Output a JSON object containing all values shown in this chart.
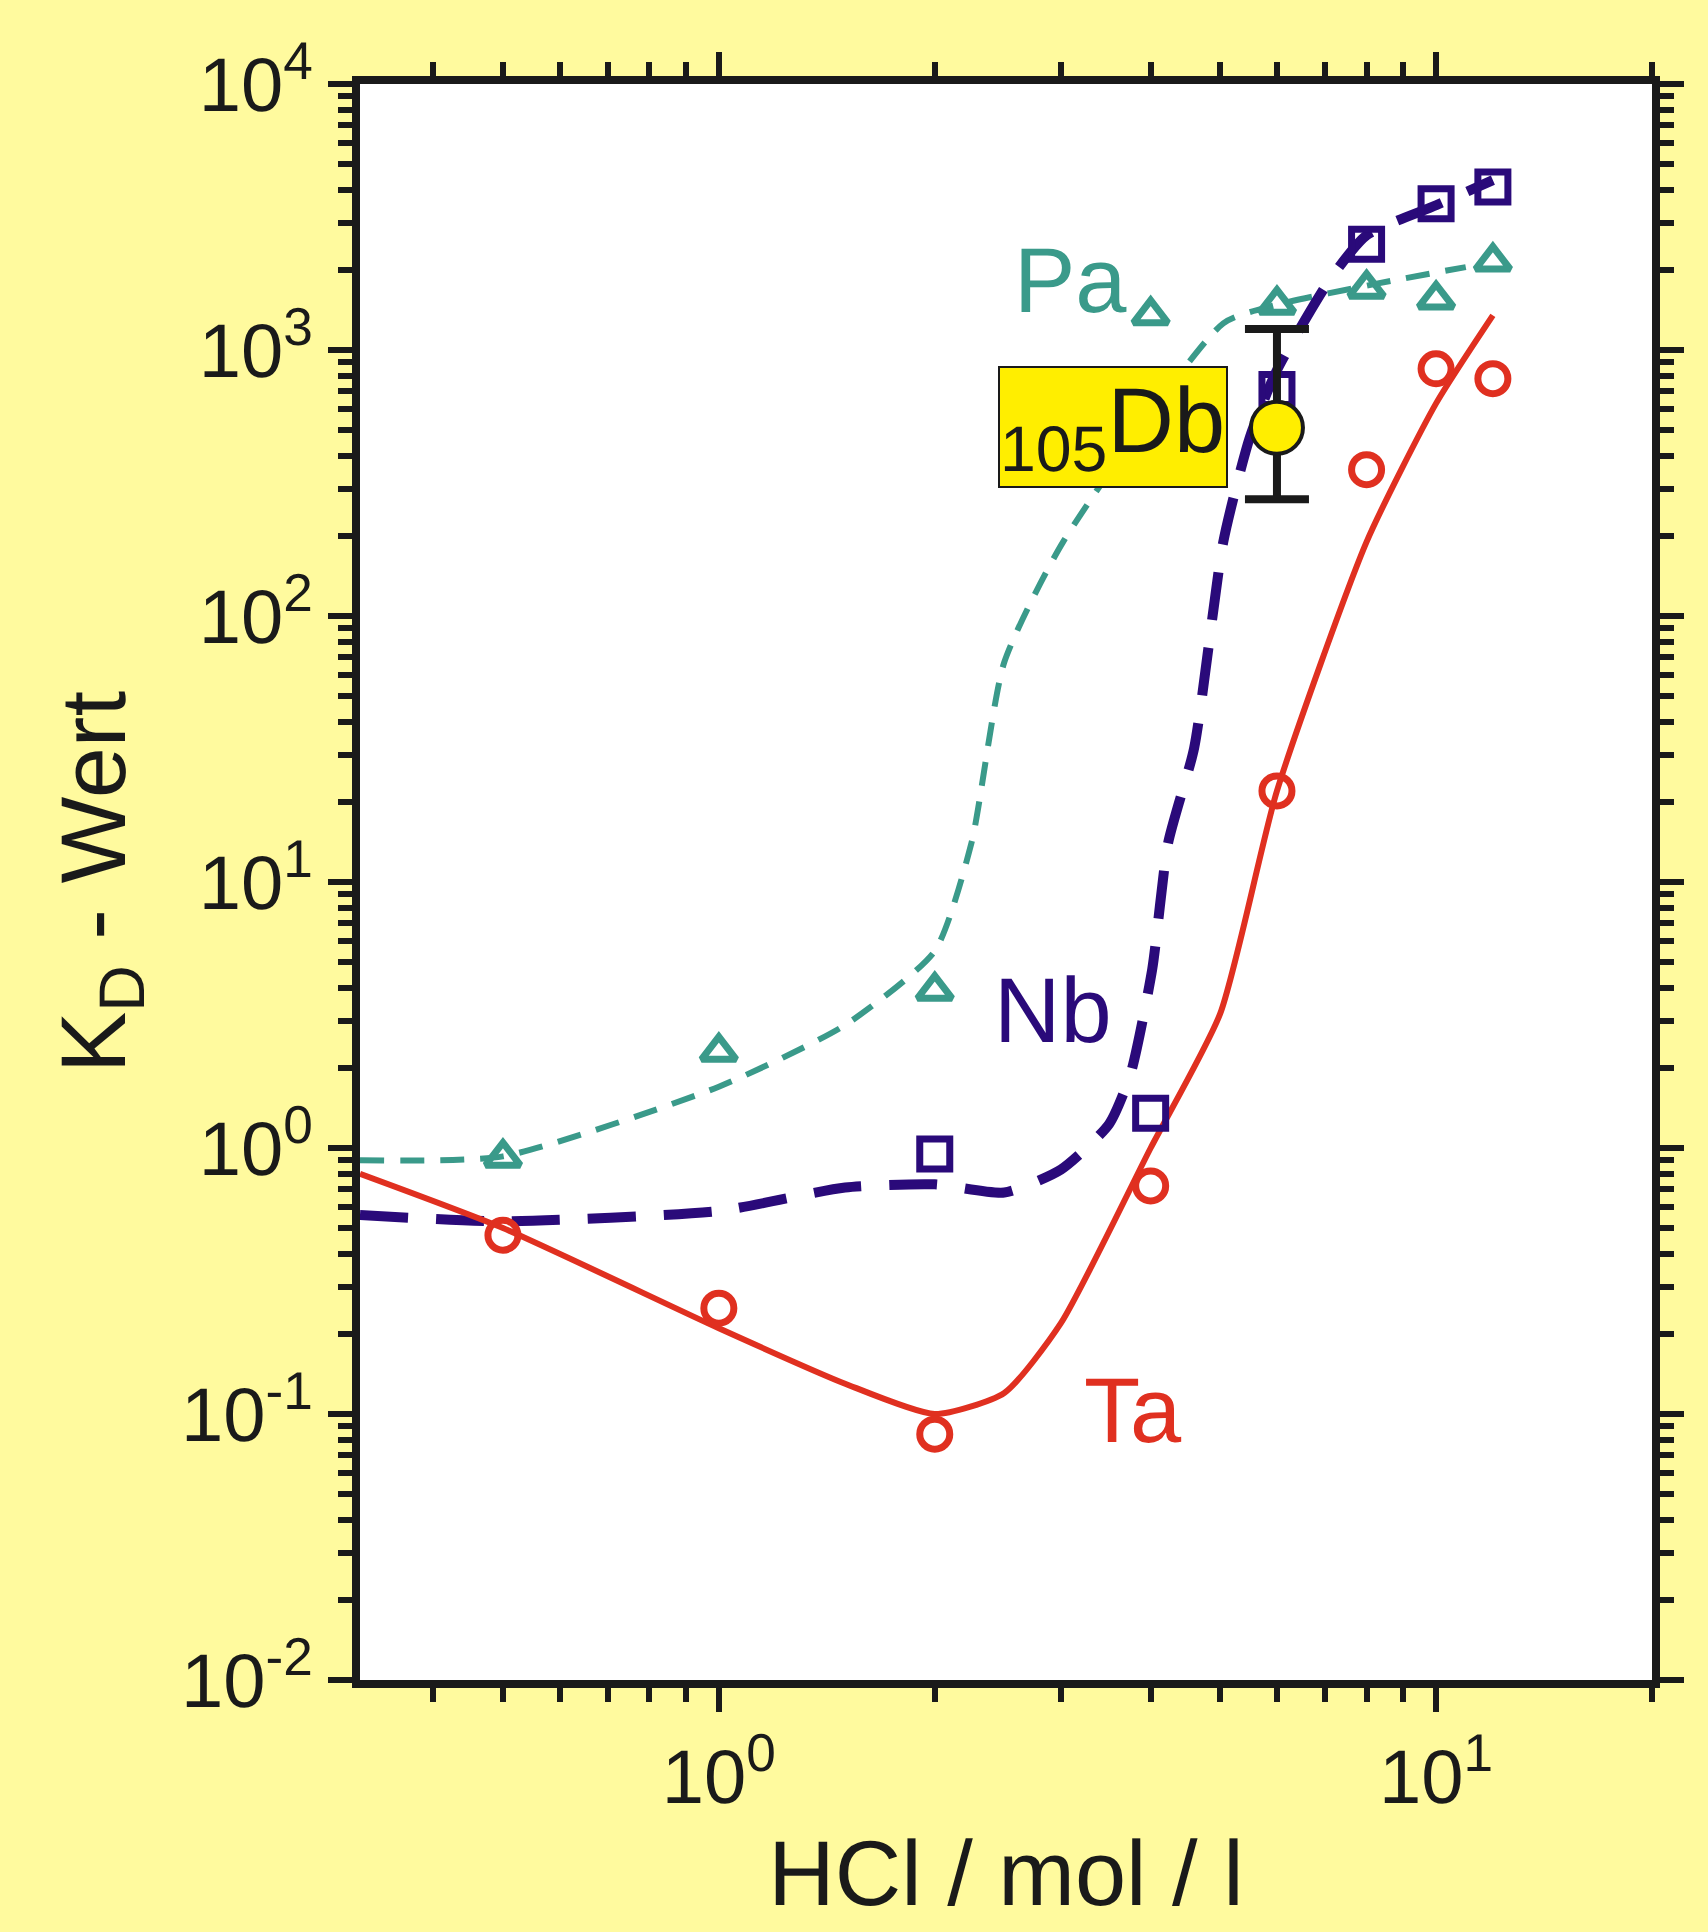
{
  "chart_data": {
    "type": "scatter",
    "xlabel": "HCl / mol / l",
    "ylabel": "K$_{D}$ - Wert",
    "log": "xy",
    "xlim": [
      0.316,
      20
    ],
    "xticks": [
      {
        "value": 1,
        "label": "10$^{0}$"
      },
      {
        "value": 10,
        "label": "10$^{1}$"
      }
    ],
    "ylim": [
      0.01,
      10000
    ],
    "yticks": [
      {
        "value": 0.01,
        "label": "10$^{-2}$"
      },
      {
        "value": 0.1,
        "label": "10$^{-1}$"
      },
      {
        "value": 1,
        "label": "10$^{0}$"
      },
      {
        "value": 10,
        "label": "10$^{1}$"
      },
      {
        "value": 100,
        "label": "10$^{2}$"
      },
      {
        "value": 1000,
        "label": "10$^{3}$"
      },
      {
        "value": 10000,
        "label": "10$^{4}$"
      }
    ],
    "series": [
      {
        "name": "Pa",
        "marker": "triangle",
        "color": "#3a9a8a",
        "x": [
          0.5,
          1,
          2,
          4,
          6,
          8,
          10,
          12
        ],
        "values": [
          0.92,
          2.3,
          3.9,
          1350,
          1480,
          1700,
          1550,
          2150
        ]
      },
      {
        "name": "Nb",
        "marker": "square",
        "color": "#2a0a7a",
        "x": [
          2,
          4,
          6,
          8,
          10,
          12
        ],
        "values": [
          0.95,
          1.35,
          710,
          2500,
          3550,
          4100
        ]
      },
      {
        "name": "Ta",
        "marker": "circle",
        "color": "#e03020",
        "x": [
          0.5,
          1,
          2,
          4,
          6,
          8,
          10,
          12
        ],
        "values": [
          0.47,
          0.25,
          0.084,
          0.72,
          22,
          355,
          850,
          780
        ]
      },
      {
        "name": "$_{105}$Db",
        "marker": "circle",
        "color": "#ffee00",
        "x": [
          6
        ],
        "values": [
          510
        ],
        "errors": [
          [
            275,
            1200
          ]
        ]
      },
      {
        "type": "line",
        "line_style": "dashed",
        "color": "#3a9a8a",
        "x": [
          0.316,
          0.5,
          1,
          1.5,
          2,
          2.25,
          2.5,
          3.02,
          3.37,
          5.05,
          6,
          8.3,
          11
        ],
        "values": [
          0.9,
          0.93,
          1.7,
          2.9,
          5.5,
          14,
          67,
          190,
          null,
          1260,
          1480,
          1780,
          2050
        ]
      },
      {
        "type": "line",
        "line_style": "dashed",
        "color": "#2a0a7a",
        "x": [
          0.316,
          0.5,
          1,
          1.5,
          2,
          2.5,
          3,
          3.5,
          3.75,
          4.02,
          4.23,
          4.6,
          5.05,
          5.5,
          6,
          7.1,
          8,
          10,
          12
        ],
        "values": [
          0.56,
          0.53,
          0.58,
          0.71,
          0.73,
          0.68,
          0.83,
          1.23,
          1.9,
          4.7,
          14,
          32,
          190,
          470,
          840,
          1830,
          2700,
          3500,
          4350
        ]
      },
      {
        "type": "line",
        "line_style": "solid",
        "color": "#e03020",
        "x": [
          0.316,
          0.5,
          1,
          1.5,
          2,
          2.5,
          3,
          4,
          5,
          6,
          8,
          10,
          12
        ],
        "values": [
          0.8,
          0.5,
          0.21,
          0.13,
          0.1,
          0.12,
          0.22,
          1.0,
          3.2,
          22,
          190,
          630,
          1350
        ]
      }
    ]
  }
}
